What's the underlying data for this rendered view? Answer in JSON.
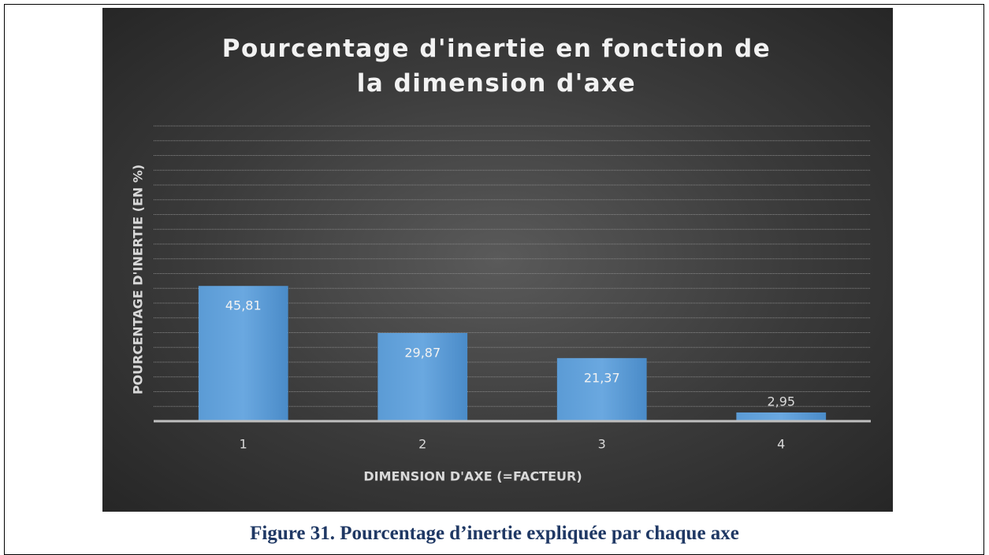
{
  "chart_data": {
    "type": "bar",
    "title": "Pourcentage d'inertie en fonction de la dimension d'axe",
    "x_label": "DIMENSION D'AXE (=FACTEUR)",
    "y_label": "POURCENTAGE D'INERTIE (EN %)",
    "categories": [
      "1",
      "2",
      "3",
      "4"
    ],
    "values": [
      45.81,
      29.87,
      21.37,
      2.95
    ],
    "value_labels": [
      "45,81",
      "29,87",
      "21,37",
      "2,95"
    ],
    "color": "#5b9bd5",
    "ylim": [
      0,
      100
    ],
    "yticks": [
      0,
      5,
      10,
      15,
      20,
      25,
      30,
      35,
      40,
      45,
      50,
      55,
      60,
      65,
      70,
      75,
      80,
      85,
      90,
      95,
      100
    ],
    "grid": true
  },
  "caption": "Figure 31. Pourcentage d’inertie expliquée par chaque axe"
}
